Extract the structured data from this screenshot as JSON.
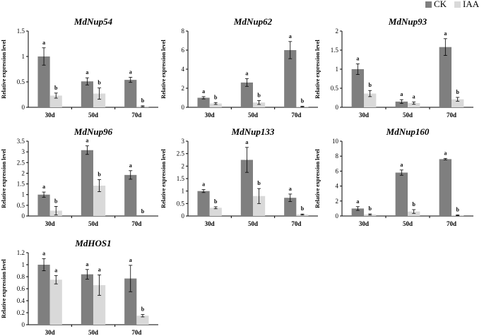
{
  "colors": {
    "ck": "#7f7f7f",
    "iaa": "#d9d9d9",
    "axis": "#000000"
  },
  "legend": {
    "ck_label": "CK",
    "iaa_label": "IAA"
  },
  "chart_data": [
    {
      "type": "bar",
      "title": "MdNup54",
      "ylabel": "Relative expression level",
      "categories": [
        "30d",
        "50d",
        "70d"
      ],
      "ylim": [
        0,
        1.5
      ],
      "yticks": [
        "0",
        "0.5",
        "1",
        "1.5"
      ],
      "series": [
        {
          "name": "CK",
          "values": [
            1.0,
            0.51,
            0.54
          ],
          "errors": [
            0.17,
            0.07,
            0.05
          ],
          "labels": [
            "a",
            "a",
            "a"
          ]
        },
        {
          "name": "IAA",
          "values": [
            0.23,
            0.27,
            0.02
          ],
          "errors": [
            0.05,
            0.11,
            0.01
          ],
          "labels": [
            "b",
            "b",
            "b"
          ]
        }
      ]
    },
    {
      "type": "bar",
      "title": "MdNup62",
      "ylabel": "Relative expression level",
      "categories": [
        "30d",
        "50d",
        "70d"
      ],
      "ylim": [
        0,
        8
      ],
      "yticks": [
        "0",
        "2",
        "4",
        "6",
        "8"
      ],
      "series": [
        {
          "name": "CK",
          "values": [
            1.0,
            2.6,
            6.0
          ],
          "errors": [
            0.12,
            0.4,
            0.9
          ],
          "labels": [
            "a",
            "a",
            "a"
          ]
        },
        {
          "name": "IAA",
          "values": [
            0.4,
            0.5,
            0.08
          ],
          "errors": [
            0.1,
            0.2,
            0.03
          ],
          "labels": [
            "b",
            "b",
            "b"
          ]
        }
      ]
    },
    {
      "type": "bar",
      "title": "MdNup93",
      "ylabel": "Relative expression level",
      "categories": [
        "30d",
        "50d",
        "70d"
      ],
      "ylim": [
        0,
        2
      ],
      "yticks": [
        "0",
        "0.5",
        "1",
        "1.5",
        "2"
      ],
      "series": [
        {
          "name": "CK",
          "values": [
            1.0,
            0.15,
            1.58
          ],
          "errors": [
            0.14,
            0.05,
            0.22
          ],
          "labels": [
            "a",
            "a",
            "a"
          ]
        },
        {
          "name": "IAA",
          "values": [
            0.36,
            0.11,
            0.21
          ],
          "errors": [
            0.08,
            0.03,
            0.05
          ],
          "labels": [
            "b",
            "a",
            "b"
          ]
        }
      ]
    },
    {
      "type": "bar",
      "title": "MdNup96",
      "ylabel": "Relative expression level",
      "categories": [
        "30d",
        "50d",
        "70d"
      ],
      "ylim": [
        0,
        3.5
      ],
      "yticks": [
        "0",
        "0.5",
        "1",
        "1.5",
        "2",
        "2.5",
        "3",
        "3.5"
      ],
      "series": [
        {
          "name": "CK",
          "values": [
            1.0,
            3.08,
            1.92
          ],
          "errors": [
            0.12,
            0.2,
            0.2
          ],
          "labels": [
            "a",
            "a",
            "a"
          ]
        },
        {
          "name": "IAA",
          "values": [
            0.25,
            1.42,
            0.0
          ],
          "errors": [
            0.2,
            0.28,
            0.0
          ],
          "labels": [
            "b",
            "b",
            "b"
          ]
        }
      ]
    },
    {
      "type": "bar",
      "title": "MdNup133",
      "ylabel": "Relative expression level",
      "categories": [
        "30d",
        "50d",
        "70d"
      ],
      "ylim": [
        0,
        3
      ],
      "yticks": [
        "0",
        "0.5",
        "1",
        "1.5",
        "2",
        "2.5",
        "3"
      ],
      "series": [
        {
          "name": "CK",
          "values": [
            1.0,
            2.25,
            0.73
          ],
          "errors": [
            0.06,
            0.5,
            0.15
          ],
          "labels": [
            "a",
            "a",
            "a"
          ]
        },
        {
          "name": "IAA",
          "values": [
            0.33,
            0.8,
            0.06
          ],
          "errors": [
            0.04,
            0.3,
            0.02
          ],
          "labels": [
            "b",
            "b",
            "b"
          ]
        }
      ]
    },
    {
      "type": "bar",
      "title": "MdNup160",
      "ylabel": "Relative expression level",
      "categories": [
        "30d",
        "50d",
        "70d"
      ],
      "ylim": [
        0,
        10
      ],
      "yticks": [
        "0",
        "2",
        "4",
        "6",
        "8",
        "10"
      ],
      "series": [
        {
          "name": "CK",
          "values": [
            1.0,
            5.8,
            7.6
          ],
          "errors": [
            0.25,
            0.35,
            0.1
          ],
          "labels": [
            "a",
            "a",
            "a"
          ]
        },
        {
          "name": "IAA",
          "values": [
            0.2,
            0.6,
            0.1
          ],
          "errors": [
            0.08,
            0.25,
            0.05
          ],
          "labels": [
            "b",
            "b",
            "b"
          ]
        }
      ]
    },
    {
      "type": "bar",
      "title": "MdHOS1",
      "ylabel": "Relative expression level",
      "categories": [
        "30d",
        "50d",
        "70d"
      ],
      "ylim": [
        0,
        1.2
      ],
      "yticks": [
        "0",
        "0.2",
        "0.4",
        "0.6",
        "0.8",
        "1",
        "1.2"
      ],
      "series": [
        {
          "name": "CK",
          "values": [
            1.0,
            0.84,
            0.77
          ],
          "errors": [
            0.1,
            0.08,
            0.22
          ],
          "labels": [
            "a",
            "a",
            "a"
          ]
        },
        {
          "name": "IAA",
          "values": [
            0.75,
            0.66,
            0.15
          ],
          "errors": [
            0.07,
            0.17,
            0.02
          ],
          "labels": [
            "a",
            "a",
            "b"
          ]
        }
      ]
    }
  ]
}
